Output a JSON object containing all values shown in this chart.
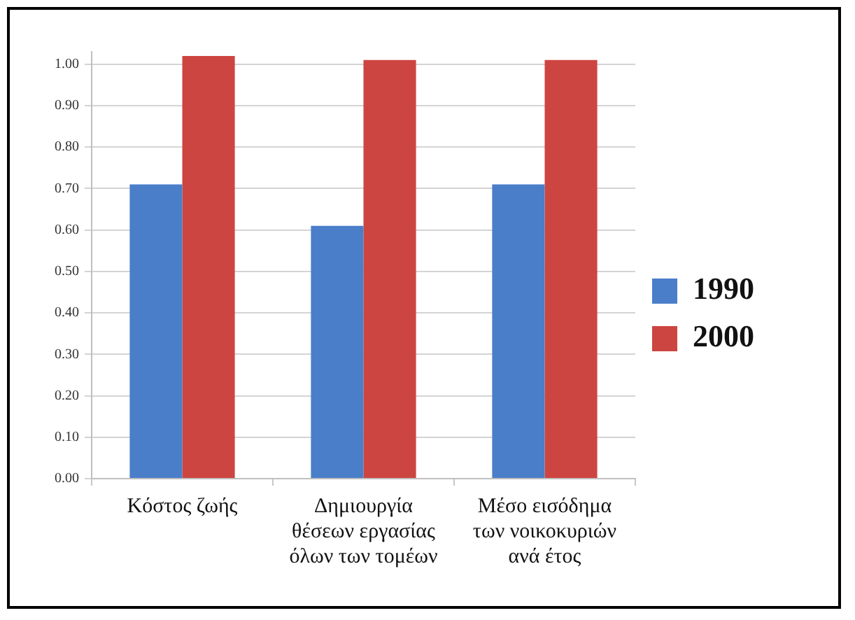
{
  "chart_data": {
    "type": "bar",
    "categories": [
      "Κόστος ζωής",
      "Δημιουργία θέσεων εργασίας όλων των τομέων",
      "Μέσο εισόδημα των νοικοκυριών ανά έτος"
    ],
    "series": [
      {
        "name": "1990",
        "color": "#4a7ec9",
        "values": [
          0.71,
          0.61,
          0.71
        ]
      },
      {
        "name": "2000",
        "color": "#cd4540",
        "values": [
          1.02,
          1.01,
          1.01
        ]
      }
    ],
    "ylim": [
      0,
      1.03
    ],
    "yticks": [
      {
        "value": 0,
        "label": "0.00"
      },
      {
        "value": 0.1,
        "label": "0.10"
      },
      {
        "value": 0.2,
        "label": "0.20"
      },
      {
        "value": 0.3,
        "label": "0.30"
      },
      {
        "value": 0.4,
        "label": "0.40"
      },
      {
        "value": 0.5,
        "label": "0.50"
      },
      {
        "value": 0.6,
        "label": "0.60"
      },
      {
        "value": 0.7,
        "label": "0.70"
      },
      {
        "value": 0.8,
        "label": "0.80"
      },
      {
        "value": 0.9,
        "label": "0.90"
      },
      {
        "value": 1,
        "label": "1.00"
      }
    ],
    "grid": "y",
    "legend": "right"
  }
}
